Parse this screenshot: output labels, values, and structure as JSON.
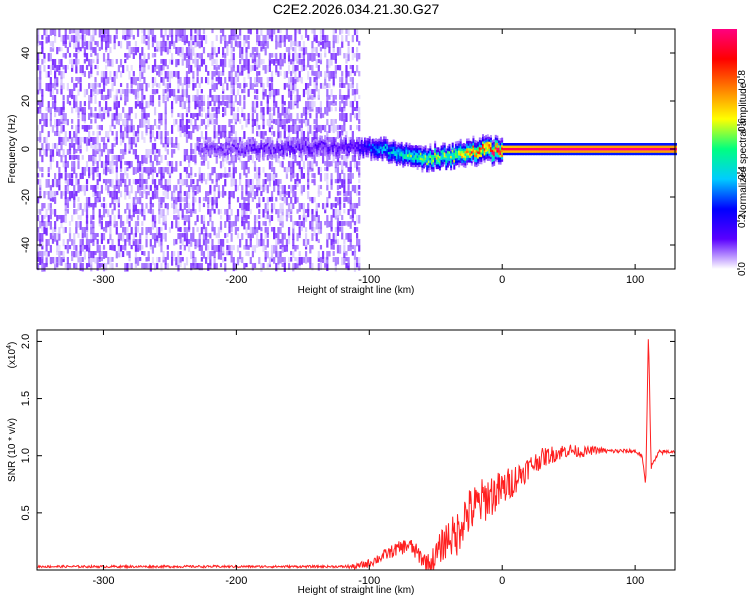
{
  "chart_data": [
    {
      "type": "heatmap",
      "title": "C2E2.2026.034.21.30.G27",
      "xlabel": "Height of straight line (km)",
      "ylabel": "Frequency (Hz)",
      "xlim": [
        -350,
        130
      ],
      "ylim": [
        -50,
        50
      ],
      "x_ticks": [
        "-300",
        "-200",
        "-100",
        "0",
        "100"
      ],
      "x_tick_values": [
        -300,
        -200,
        -100,
        0,
        100
      ],
      "y_ticks": [
        "-40",
        "-20",
        "0",
        "20",
        "40"
      ],
      "y_tick_values": [
        -40,
        -20,
        0,
        20,
        40
      ],
      "colorbar": {
        "label": "Normalized spectral amplitude",
        "range": [
          0,
          1
        ],
        "ticks": [
          "0.0",
          "0.2",
          "0.4",
          "0.6",
          "0.8"
        ],
        "tick_values": [
          0.0,
          0.2,
          0.4,
          0.6,
          0.8
        ],
        "colors": [
          "#ffffff",
          "#5a00ff",
          "#0000ff",
          "#00ccff",
          "#00ff80",
          "#ffff00",
          "#ff8000",
          "#ff0000",
          "#ff0080"
        ]
      },
      "noise_region": {
        "x_range": [
          -350,
          -108
        ],
        "freq_range": [
          -50,
          50
        ],
        "level": 0.08
      },
      "ridge": [
        {
          "x": -230,
          "f": 0,
          "a": 0.1
        },
        {
          "x": -110,
          "f": 1,
          "a": 0.15
        },
        {
          "x": -95,
          "f": 1,
          "a": 0.35
        },
        {
          "x": -80,
          "f": -2,
          "a": 0.45
        },
        {
          "x": -60,
          "f": -4,
          "a": 0.55
        },
        {
          "x": -40,
          "f": -3,
          "a": 0.6
        },
        {
          "x": -20,
          "f": -1,
          "a": 0.8
        },
        {
          "x": 0,
          "f": 0,
          "a": 0.95
        },
        {
          "x": 50,
          "f": 0,
          "a": 1.0
        },
        {
          "x": 100,
          "f": 0,
          "a": 1.0
        },
        {
          "x": 130,
          "f": 0,
          "a": 1.0
        }
      ]
    },
    {
      "type": "line",
      "title": "",
      "xlabel": "Height of straight line (km)",
      "ylabel": "SNR (10 * v/v)",
      "y_multiplier": "(x10",
      "y_multiplier_exp": "4",
      "y_multiplier_close": ")",
      "xlim": [
        -350,
        130
      ],
      "ylim": [
        0,
        2.1
      ],
      "x_ticks": [
        "-300",
        "-200",
        "-100",
        "0",
        "100"
      ],
      "x_tick_values": [
        -300,
        -200,
        -100,
        0,
        100
      ],
      "y_ticks": [
        "0.5",
        "1.0",
        "1.5",
        "2.0"
      ],
      "y_tick_values": [
        0.5,
        1.0,
        1.5,
        2.0
      ],
      "series": [
        {
          "color": "#ff2020",
          "points": [
            [
              -350,
              0.03
            ],
            [
              -200,
              0.03
            ],
            [
              -110,
              0.03
            ],
            [
              -100,
              0.06
            ],
            [
              -90,
              0.12
            ],
            [
              -80,
              0.18
            ],
            [
              -70,
              0.22
            ],
            [
              -60,
              0.1
            ],
            [
              -55,
              0.04
            ],
            [
              -50,
              0.12
            ],
            [
              -45,
              0.22
            ],
            [
              -40,
              0.3
            ],
            [
              -35,
              0.28
            ],
            [
              -30,
              0.45
            ],
            [
              -20,
              0.55
            ],
            [
              -10,
              0.65
            ],
            [
              0,
              0.7
            ],
            [
              10,
              0.8
            ],
            [
              20,
              0.9
            ],
            [
              30,
              0.98
            ],
            [
              40,
              1.02
            ],
            [
              50,
              1.05
            ],
            [
              60,
              1.03
            ],
            [
              70,
              1.05
            ],
            [
              80,
              1.04
            ],
            [
              90,
              1.04
            ],
            [
              100,
              1.04
            ],
            [
              105,
              1.0
            ],
            [
              108,
              0.75
            ],
            [
              110,
              2.1
            ],
            [
              112,
              0.9
            ],
            [
              118,
              1.03
            ],
            [
              130,
              1.04
            ]
          ],
          "noise": [
            {
              "x": -350,
              "amp": 0.01
            },
            {
              "x": -120,
              "amp": 0.01
            },
            {
              "x": -100,
              "amp": 0.04
            },
            {
              "x": -60,
              "amp": 0.08
            },
            {
              "x": -30,
              "amp": 0.22
            },
            {
              "x": -10,
              "amp": 0.2
            },
            {
              "x": 20,
              "amp": 0.1
            },
            {
              "x": 50,
              "amp": 0.06
            },
            {
              "x": 80,
              "amp": 0.02
            },
            {
              "x": 130,
              "amp": 0.02
            }
          ]
        }
      ]
    }
  ]
}
